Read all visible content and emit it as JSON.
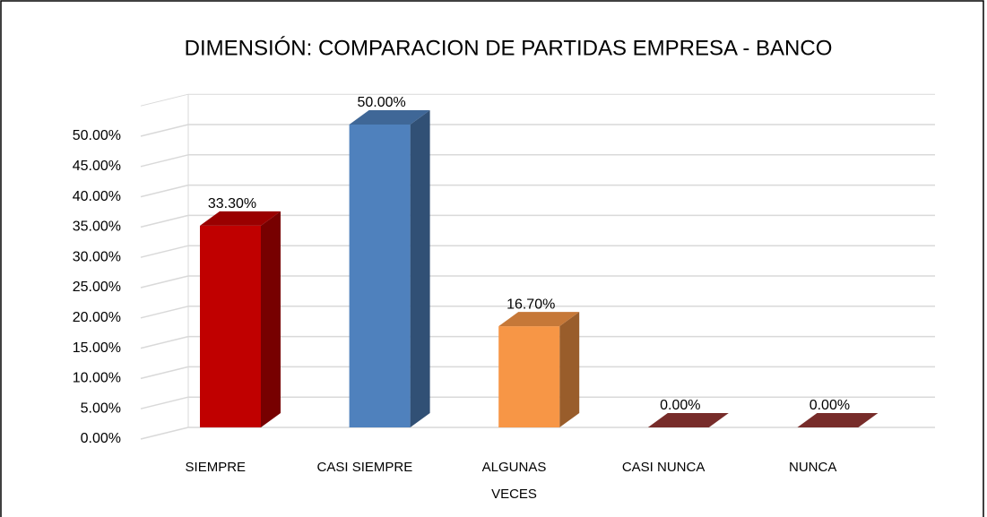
{
  "chart_data": {
    "type": "bar3d",
    "title": "DIMENSIÓN: COMPARACION DE PARTIDAS EMPRESA - BANCO",
    "categories": [
      "SIEMPRE",
      "CASI SIEMPRE",
      "ALGUNAS VECES",
      "CASI NUNCA",
      "NUNCA"
    ],
    "values": [
      33.3,
      50,
      16.7,
      0,
      0
    ],
    "value_labels": [
      "33.30%",
      "50.00%",
      "16.70%",
      "0.00%",
      "0.00%"
    ],
    "colors": [
      "#c00000",
      "#4f81bd",
      "#f79646",
      "#953735",
      "#953735"
    ],
    "ylim": [
      0,
      55
    ],
    "yticks": [
      {
        "value": 0,
        "label": "0.00%"
      },
      {
        "value": 5,
        "label": "5.00%"
      },
      {
        "value": 10,
        "label": "10.00%"
      },
      {
        "value": 15,
        "label": "15.00%"
      },
      {
        "value": 20,
        "label": "20.00%"
      },
      {
        "value": 25,
        "label": "25.00%"
      },
      {
        "value": 30,
        "label": "30.00%"
      },
      {
        "value": 35,
        "label": "35.00%"
      },
      {
        "value": 40,
        "label": "40.00%"
      },
      {
        "value": 45,
        "label": "45.00%"
      },
      {
        "value": 50,
        "label": "50.00%"
      }
    ],
    "grid": true
  }
}
